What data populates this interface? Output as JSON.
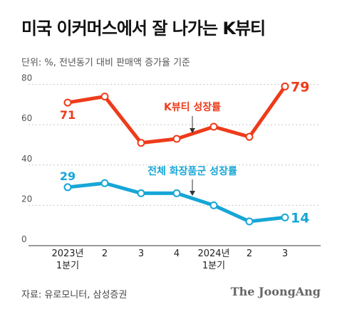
{
  "title": "미국 이커머스에서 잘 나가는 K뷰티",
  "subtitle": "단위: %, 전년동기 대비 판매액 증가율 기준",
  "source": "자료: 유로모니터, 삼성증권",
  "brand": "The JoongAng",
  "colors": {
    "kbeauty": "#ee3b1b",
    "total": "#16a6d6",
    "grid": "#c8c8c8"
  },
  "chart_data": {
    "type": "line",
    "categories": [
      "2023년\n1분기",
      "2",
      "3",
      "4",
      "2024년\n1분기",
      "2",
      "3"
    ],
    "yticks": [
      0,
      20,
      40,
      60,
      80
    ],
    "ylim": [
      0,
      85
    ],
    "series": [
      {
        "name": "K뷰티 성장률",
        "color": "#ee3b1b",
        "values": [
          71,
          74,
          51,
          53,
          59,
          54,
          79
        ],
        "labels": [
          "71",
          "",
          "",
          "",
          "",
          "",
          "79"
        ]
      },
      {
        "name": "전체 화장품군 성장률",
        "color": "#16a6d6",
        "values": [
          29,
          31,
          26,
          26,
          20,
          12,
          14
        ],
        "labels": [
          "29",
          "",
          "",
          "",
          "",
          "",
          "14"
        ]
      }
    ]
  }
}
